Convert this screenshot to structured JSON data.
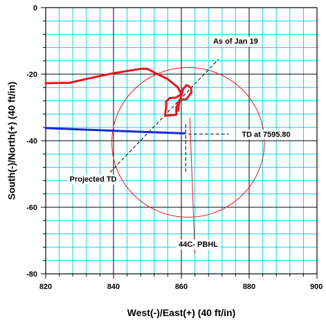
{
  "chart_data": {
    "type": "line",
    "xlabel": "West(-)/East(+) (40 ft/in)",
    "ylabel": "South(-)/North(+) (40 ft/in)",
    "xlim": [
      820,
      900
    ],
    "ylim": [
      -80,
      0
    ],
    "x_ticks": [
      820,
      840,
      860,
      880,
      900
    ],
    "y_ticks": [
      0,
      -20,
      -40,
      -60,
      -80
    ],
    "x_tick_labels": [
      "820",
      "840",
      "860",
      "880",
      "900"
    ],
    "y_tick_labels": [
      "0",
      "-20",
      "-40",
      "-60",
      "-80"
    ],
    "grid": true,
    "minor_grid_step": 4,
    "major_grid_step": 20,
    "series": [
      {
        "color": "#e8141c",
        "points": [
          [
            820,
            -22.7
          ],
          [
            827,
            -22.6
          ],
          [
            833,
            -21.2
          ],
          [
            840,
            -19.7
          ],
          [
            848,
            -18.4
          ],
          [
            850,
            -18.4
          ],
          [
            853,
            -20.0
          ],
          [
            856,
            -21.5
          ],
          [
            859,
            -24.0
          ],
          [
            860,
            -26.0
          ],
          [
            858.5,
            -27.0
          ],
          [
            856.5,
            -27.2
          ],
          [
            855.5,
            -28.3
          ],
          [
            855.5,
            -30.0
          ],
          [
            855.2,
            -32.5
          ],
          [
            858.5,
            -32.2
          ],
          [
            858.5,
            -30.0
          ],
          [
            859.5,
            -27.7
          ],
          [
            861.5,
            -27.5
          ],
          [
            863,
            -25.5
          ],
          [
            862.8,
            -24.0
          ],
          [
            861.5,
            -23.3
          ],
          [
            860.5,
            -24.5
          ],
          [
            860,
            -26.5
          ],
          [
            859.5,
            -28.0
          ],
          [
            859,
            -31.0
          ]
        ]
      },
      {
        "color": "#1428d8",
        "points": [
          [
            820,
            -36.2
          ],
          [
            830,
            -36.6
          ],
          [
            840,
            -37.0
          ],
          [
            850,
            -37.4
          ],
          [
            861,
            -37.8
          ]
        ]
      }
    ],
    "circle": {
      "center": [
        862,
        -40.5
      ],
      "radius": 22.5,
      "color": "#e8141c"
    },
    "guide_lines": [
      {
        "from": [
          839,
          -49.5
        ],
        "to": [
          871,
          -15.5
        ],
        "color": "#000000",
        "style": "dashed"
      },
      {
        "from": [
          862,
          -38
        ],
        "to": [
          874,
          -38
        ],
        "color": "#000000",
        "style": "dashed"
      },
      {
        "from": [
          861.3,
          -35
        ],
        "to": [
          861.3,
          -50
        ],
        "color": "#000000",
        "style": "dashed"
      },
      {
        "from": [
          864,
          -74
        ],
        "to": [
          862.5,
          -33
        ],
        "color": "#e8141c",
        "style": "solid"
      }
    ],
    "annotations": [
      {
        "text": "As of Jan 19",
        "x": 876,
        "y": -10
      },
      {
        "text": "TD at 7595.80",
        "x": 885,
        "y": -38
      },
      {
        "text": "Projected TD",
        "x": 834,
        "y": -51.5
      },
      {
        "text": "44C- PBHL",
        "x": 865,
        "y": -71
      }
    ]
  }
}
